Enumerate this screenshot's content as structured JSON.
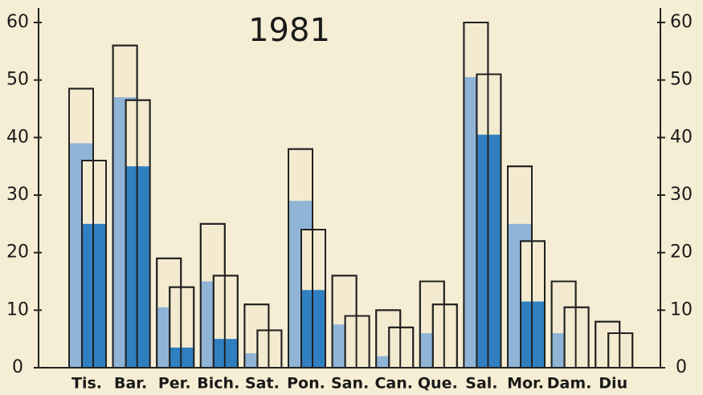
{
  "chart_data": {
    "type": "bar",
    "title": "1981",
    "categories": [
      "Tis.",
      "Bar.",
      "Per.",
      "Bich.",
      "Sat.",
      "Pon.",
      "San.",
      "Can.",
      "Que.",
      "Sal.",
      "Mor.",
      "Dam.",
      "Diu"
    ],
    "series": [
      {
        "color": "#f3ead0",
        "values": [
          48.5,
          56,
          19,
          25,
          11,
          38,
          16,
          10,
          15,
          60,
          35,
          15,
          8
        ]
      },
      {
        "color": "#8fb4d6",
        "values": [
          39,
          47,
          10.5,
          15,
          2.5,
          29,
          7.5,
          2,
          6,
          50.5,
          25,
          6,
          0
        ]
      },
      {
        "color": "#f3ead0",
        "values": [
          36,
          46.5,
          14,
          16,
          6.5,
          24,
          9,
          7,
          11,
          51,
          22,
          10.5,
          6
        ]
      },
      {
        "color": "#2f7fc1",
        "values": [
          25,
          35,
          3.5,
          5,
          0,
          13.5,
          0,
          0,
          0,
          40.5,
          11.5,
          0,
          0
        ]
      }
    ],
    "ylim": [
      0,
      60
    ],
    "yticks": [
      0,
      10,
      20,
      30,
      40,
      50,
      60
    ],
    "y2lim": [
      0,
      60
    ],
    "y2ticks": [
      0,
      10,
      20,
      30,
      40,
      50,
      60
    ]
  }
}
